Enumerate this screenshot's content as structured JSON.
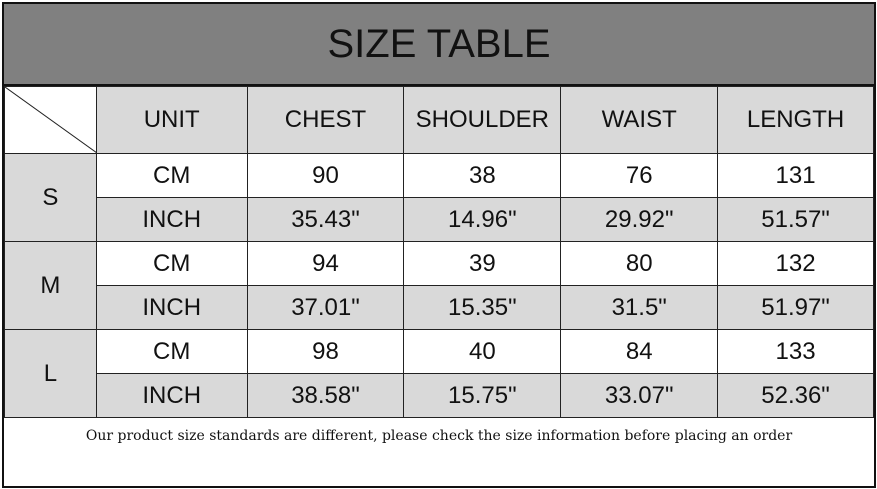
{
  "title": "SIZE TABLE",
  "headers": [
    "UNIT",
    "CHEST",
    "SHOULDER",
    "WAIST",
    "LENGTH"
  ],
  "sizes": [
    {
      "size": "S",
      "rows": [
        {
          "unit": "CM",
          "chest": "90",
          "shoulder": "38",
          "waist": "76",
          "length": "131"
        },
        {
          "unit": "INCH",
          "chest": "35.43\"",
          "shoulder": "14.96\"",
          "waist": "29.92\"",
          "length": "51.57\""
        }
      ]
    },
    {
      "size": "M",
      "rows": [
        {
          "unit": "CM",
          "chest": "94",
          "shoulder": "39",
          "waist": "80",
          "length": "132"
        },
        {
          "unit": "INCH",
          "chest": "37.01\"",
          "shoulder": "15.35\"",
          "waist": "31.5\"",
          "length": "51.97\""
        }
      ]
    },
    {
      "size": "L",
      "rows": [
        {
          "unit": "CM",
          "chest": "98",
          "shoulder": "40",
          "waist": "84",
          "length": "133"
        },
        {
          "unit": "INCH",
          "chest": "38.58\"",
          "shoulder": "15.75\"",
          "waist": "33.07\"",
          "length": "52.36\""
        }
      ]
    }
  ],
  "note": "Our product size standards are different, please check the size information before placing an order",
  "colors": {
    "title_bg": "#808080",
    "cell_gray": "#d9d9d9",
    "border": "#111111"
  }
}
